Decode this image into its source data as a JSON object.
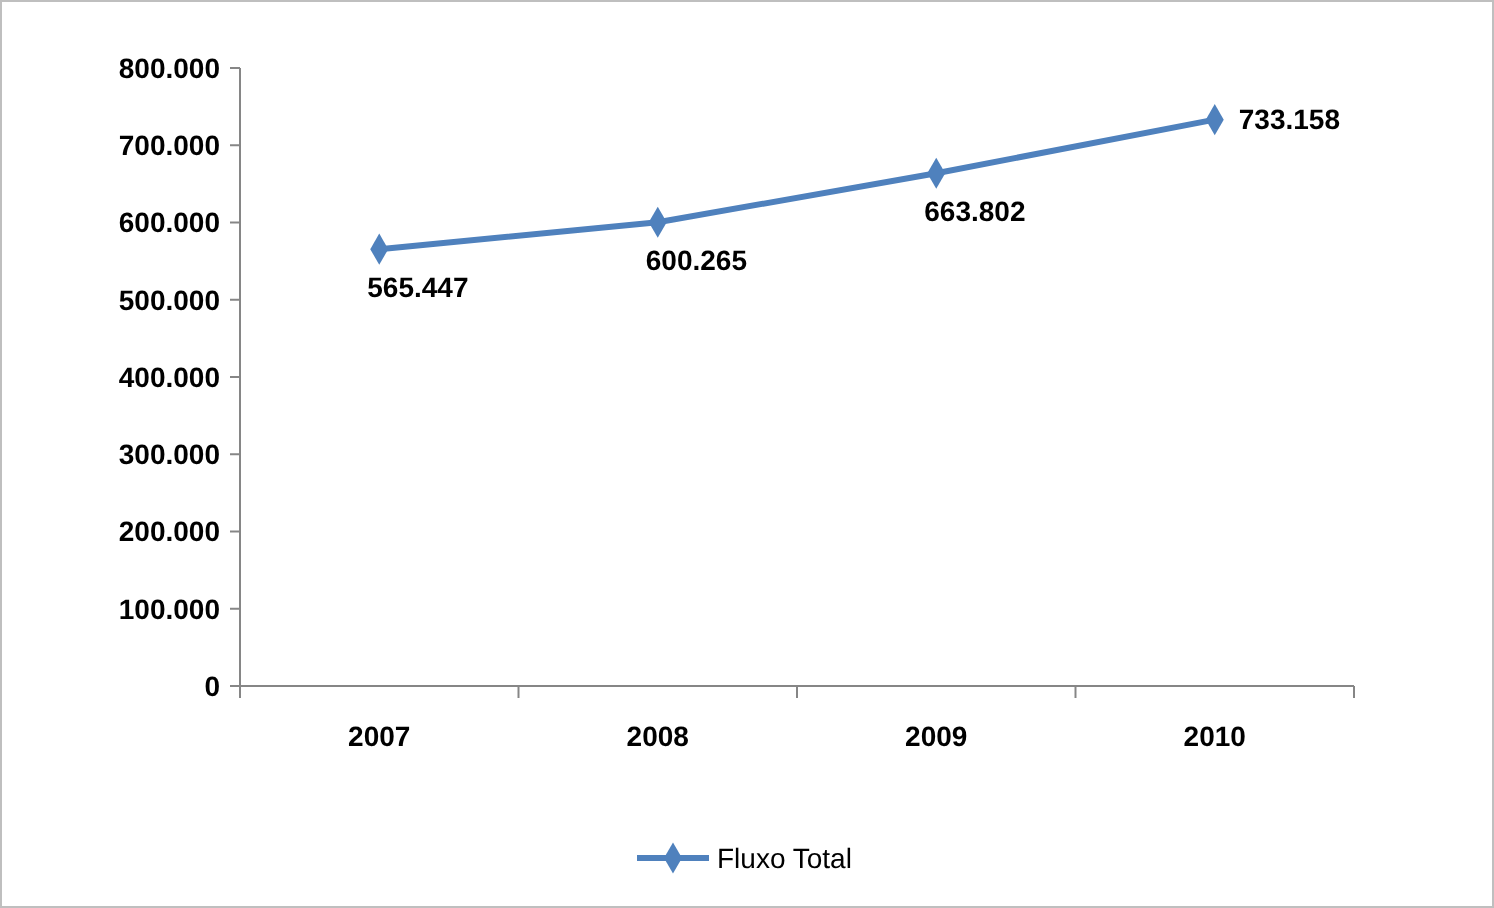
{
  "chart_data": {
    "type": "line",
    "categories": [
      "2007",
      "2008",
      "2009",
      "2010"
    ],
    "series": [
      {
        "name": "Fluxo Total",
        "color": "#4f81bd",
        "values": [
          565447,
          600265,
          663802,
          733158
        ]
      }
    ],
    "value_labels": [
      "565.447",
      "600.265",
      "663.802",
      "733.158"
    ],
    "ylim": [
      0,
      800000
    ],
    "yticks": [
      {
        "value": 0,
        "label": "0"
      },
      {
        "value": 100000,
        "label": "100.000"
      },
      {
        "value": 200000,
        "label": "200.000"
      },
      {
        "value": 300000,
        "label": "300.000"
      },
      {
        "value": 400000,
        "label": "400.000"
      },
      {
        "value": 500000,
        "label": "500.000"
      },
      {
        "value": 600000,
        "label": "600.000"
      },
      {
        "value": 700000,
        "label": "700.000"
      },
      {
        "value": 800000,
        "label": "800.000"
      }
    ],
    "grid": false,
    "legend": "bottom",
    "marker": "diamond",
    "line_style": "solid"
  }
}
